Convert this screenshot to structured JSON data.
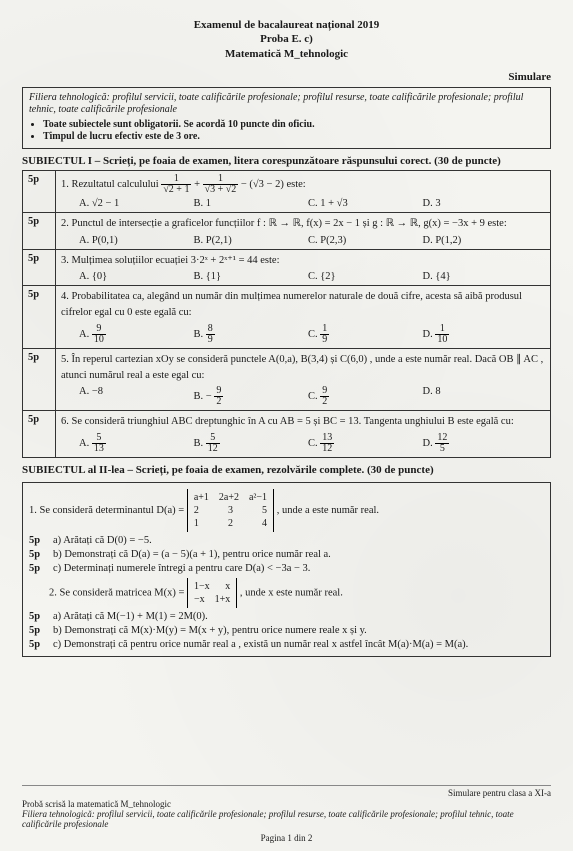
{
  "header": {
    "line1": "Examenul de bacalaureat național 2019",
    "line2": "Proba E. c)",
    "line3": "Matematică M_tehnologic",
    "line4": "",
    "sim": "Simulare"
  },
  "meta": {
    "intro": "Filiera tehnologică: profilul servicii, toate calificările profesionale; profilul resurse, toate calificările profesionale; profilul tehnic, toate calificările profesionale",
    "b1": "Toate subiectele sunt obligatorii. Se acordă 10 puncte din oficiu.",
    "b2": "Timpul de lucru efectiv este de 3 ore."
  },
  "s1": {
    "title": "SUBIECTUL I – Scrieți, pe foaia de examen, litera corespunzătoare răspunsului corect.   (30 de puncte)",
    "pts": "5p",
    "q1": {
      "stem_a": "1. Rezultatul calculului ",
      "stem_b": " este:",
      "A": "A.  √2 − 1",
      "B": "B.  1",
      "C": "C.  1 + √3",
      "D": "D.  3"
    },
    "q2": {
      "stem": "2. Punctul de intersecție a graficelor funcțiilor  f : ℝ → ℝ,  f(x) = 2x − 1  și  g : ℝ → ℝ,  g(x) = −3x + 9  este:",
      "A": "A.  P(0,1)",
      "B": "B.  P(2,1)",
      "C": "C.  P(2,3)",
      "D": "D.  P(1,2)"
    },
    "q3": {
      "stem": "3. Mulțimea soluțiilor ecuației  3·2ˣ + 2ˣ⁺¹ = 44  este:",
      "A": "A.  {0}",
      "B": "B.  {1}",
      "C": "C.  {2}",
      "D": "D.  {4}"
    },
    "q4": {
      "stem": "4. Probabilitatea ca, alegând un număr din mulțimea numerelor naturale de două cifre, acesta să aibă produsul cifrelor egal cu 0  este egală cu:",
      "A": "A.  9/10",
      "B": "B.  8/9",
      "C": "C.  1/9",
      "D": "D.  1/10"
    },
    "q5": {
      "stem": "5. În reperul cartezian xOy se consideră punctele  A(0,a),  B(3,4)  și  C(6,0) , unde  a  este număr real. Dacă  OB ∥ AC , atunci numărul real  a  este egal cu:",
      "A": "A.  −8",
      "B": "B.  −9/2",
      "C": "C.  9/2",
      "D": "D.  8"
    },
    "q6": {
      "stem": "6. Se consideră triunghiul ABC dreptunghic în A cu AB = 5 și BC = 13. Tangenta unghiului B este egală cu:",
      "A": "A.  5/13",
      "B": "B.  5/12",
      "C": "C.  13/12",
      "D": "D.  12/5"
    }
  },
  "s2": {
    "title": "SUBIECTUL al II-lea – Scrieți, pe foaia de examen, rezolvările complete.                 (30 de puncte)",
    "pts": "5p",
    "p1": {
      "stem_a": "1. Se consideră determinantul  D(a) = ",
      "stem_b": " , unde  a  este număr real.",
      "a": "a) Arătați că  D(0) = −5.",
      "b": "b) Demonstrați că  D(a) = (a − 5)(a + 1), pentru orice număr real  a.",
      "c": "c) Determinați numerele întregi  a  pentru care  D(a) < −3a − 3."
    },
    "p2": {
      "stem_a": "2. Se consideră matricea  M(x) = ",
      "stem_b": " , unde  x  este număr real.",
      "a": "a) Arătați că  M(−1) + M(1) = 2M(0).",
      "b": "b) Demonstrați că  M(x)·M(y) = M(x + y), pentru orice numere reale  x  și  y.",
      "c": "c) Demonstrați că pentru orice număr real  a , există un număr real  x  astfel încât  M(a)·M(a) = M(a)."
    }
  },
  "footer": {
    "sim": "Simulare pentru clasa a XI-a",
    "l1": "Probă scrisă la matematică M_tehnologic",
    "l2": "Filiera tehnologică: profilul servicii, toate calificările profesionale; profilul resurse, toate calificările profesionale; profilul tehnic, toate calificările profesionale",
    "pg": "Pagina 1 din 2"
  }
}
